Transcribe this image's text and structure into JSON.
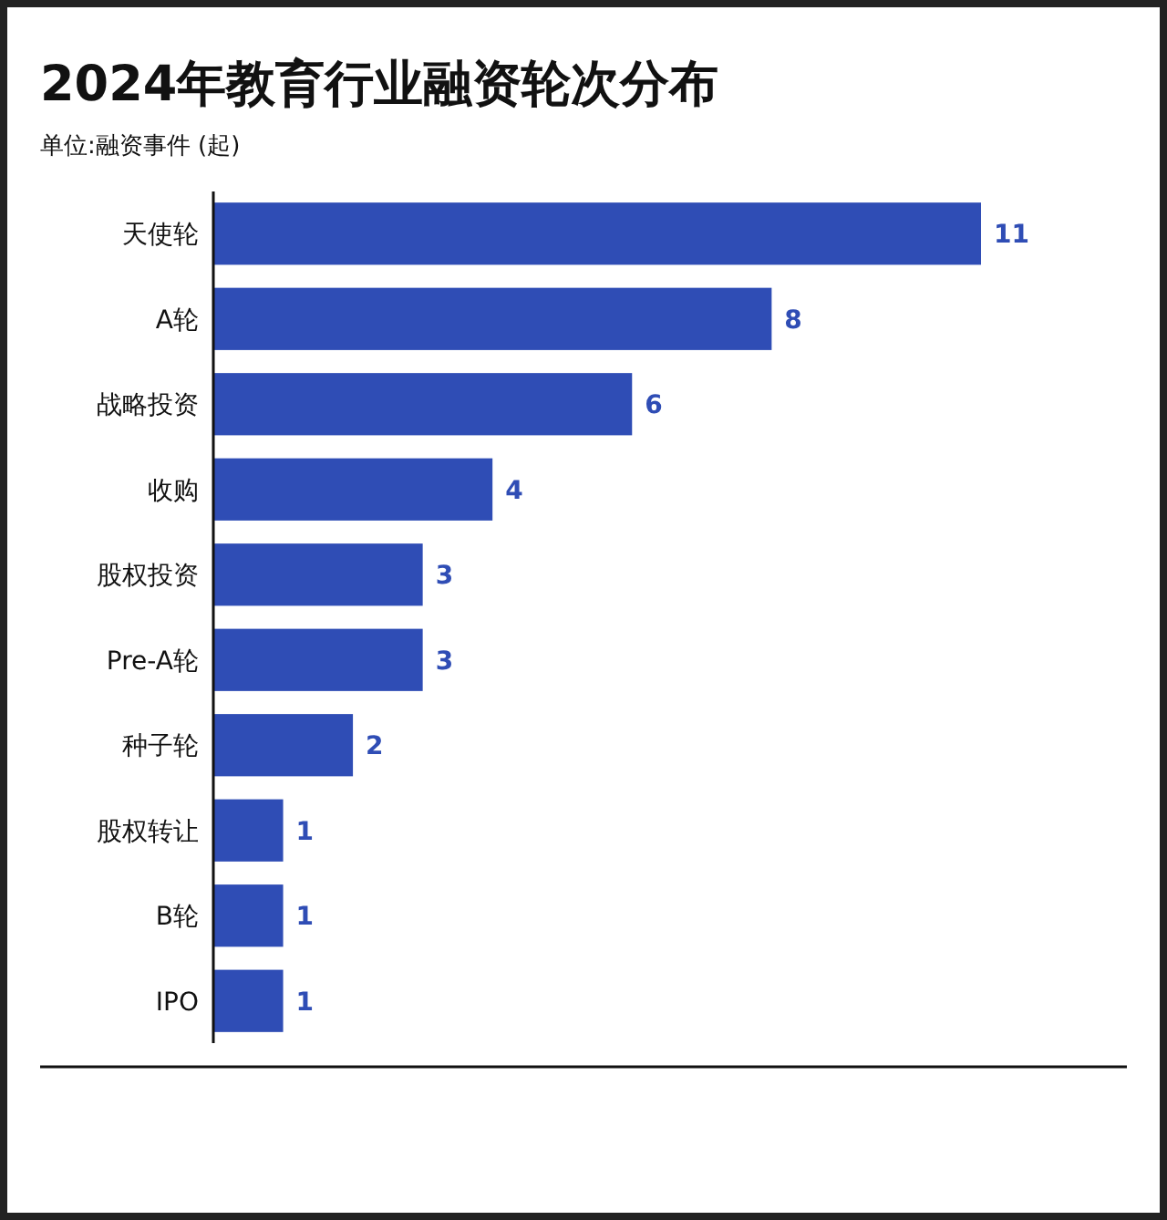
{
  "chart_data": {
    "type": "bar",
    "orientation": "horizontal",
    "title": "2024年教育行业融资轮次分布",
    "subtitle": "单位:融资事件 (起)",
    "categories": [
      "天使轮",
      "A轮",
      "战略投资",
      "收购",
      "股权投资",
      "Pre-A轮",
      "种子轮",
      "股权转让",
      "B轮",
      "IPO"
    ],
    "values": [
      11,
      8,
      6,
      4,
      3,
      3,
      2,
      1,
      1,
      1
    ],
    "color": "#2f4db5",
    "data_labels": true
  }
}
